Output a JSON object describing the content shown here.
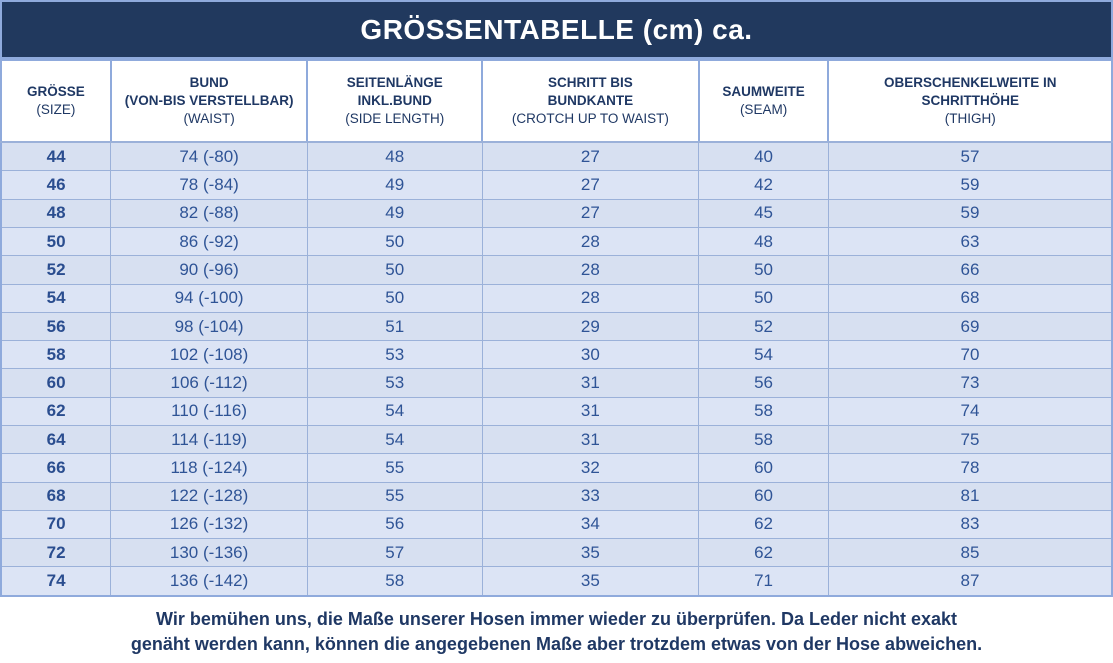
{
  "title": "GRÖSSENTABELLE (cm) ca.",
  "columns": [
    {
      "de_lines": [
        "GRÖSSE"
      ],
      "en": "(SIZE)"
    },
    {
      "de_lines": [
        "BUND",
        "(VON-BIS VERSTELLBAR)"
      ],
      "en": "(WAIST)"
    },
    {
      "de_lines": [
        "SEITENLÄNGE",
        "INKL.BUND"
      ],
      "en": "(SIDE LENGTH)"
    },
    {
      "de_lines": [
        "SCHRITT BIS",
        "BUNDKANTE"
      ],
      "en": "(CROTCH UP TO WAIST)"
    },
    {
      "de_lines": [
        "SAUMWEITE"
      ],
      "en": "(SEAM)"
    },
    {
      "de_lines": [
        "OBERSCHENKELWEITE IN",
        "SCHRITTHÖHE"
      ],
      "en": "(THIGH)"
    }
  ],
  "rows": [
    [
      "44",
      "74 (-80)",
      "48",
      "27",
      "40",
      "57"
    ],
    [
      "46",
      "78 (-84)",
      "49",
      "27",
      "42",
      "59"
    ],
    [
      "48",
      "82 (-88)",
      "49",
      "27",
      "45",
      "59"
    ],
    [
      "50",
      "86 (-92)",
      "50",
      "28",
      "48",
      "63"
    ],
    [
      "52",
      "90 (-96)",
      "50",
      "28",
      "50",
      "66"
    ],
    [
      "54",
      "94 (-100)",
      "50",
      "28",
      "50",
      "68"
    ],
    [
      "56",
      "98 (-104)",
      "51",
      "29",
      "52",
      "69"
    ],
    [
      "58",
      "102 (-108)",
      "53",
      "30",
      "54",
      "70"
    ],
    [
      "60",
      "106 (-112)",
      "53",
      "31",
      "56",
      "73"
    ],
    [
      "62",
      "110 (-116)",
      "54",
      "31",
      "58",
      "74"
    ],
    [
      "64",
      "114 (-119)",
      "54",
      "31",
      "58",
      "75"
    ],
    [
      "66",
      "118 (-124)",
      "55",
      "32",
      "60",
      "78"
    ],
    [
      "68",
      "122 (-128)",
      "55",
      "33",
      "60",
      "81"
    ],
    [
      "70",
      "126 (-132)",
      "56",
      "34",
      "62",
      "83"
    ],
    [
      "72",
      "130 (-136)",
      "57",
      "35",
      "62",
      "85"
    ],
    [
      "74",
      "136 (-142)",
      "58",
      "35",
      "71",
      "87"
    ]
  ],
  "footer": {
    "line1": "Wir bemühen uns, die Maße unserer Hosen immer wieder zu überprüfen. Da Leder nicht exakt",
    "line2": "genäht werden kann, können die angegebenen Maße aber trotzdem etwas von der Hose abweichen."
  },
  "colors": {
    "title_bar_bg": "#21395e",
    "title_text": "#ffffff",
    "outer_border": "#8faadc",
    "cell_border": "#9bb1d9",
    "row_bg": "#d7e0f1",
    "row_bg_alt": "#dce4f5",
    "header_text": "#1f3864",
    "data_text": "#2f5496",
    "size_column_text": "#2a4d8f"
  }
}
